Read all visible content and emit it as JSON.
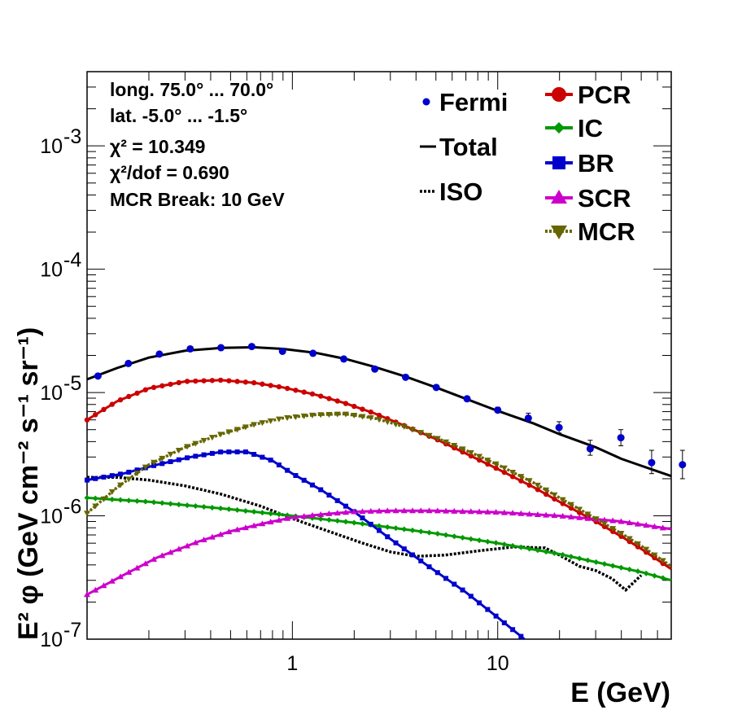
{
  "chart_data": {
    "type": "line",
    "xlabel": "E (GeV)",
    "ylabel": "E² φ (GeV cm⁻² s⁻¹ sr⁻¹)",
    "x_scale": "log",
    "y_scale": "log",
    "xlim": [
      0.1,
      70
    ],
    "ylim": [
      1e-07,
      0.004
    ],
    "x_tick_labels": [
      {
        "value": 1,
        "label": "1"
      },
      {
        "value": 10,
        "label": "10"
      }
    ],
    "y_tick_labels": [
      {
        "value": 1e-07,
        "mant": "10",
        "exp": "-7"
      },
      {
        "value": 1e-06,
        "mant": "10",
        "exp": "-6"
      },
      {
        "value": 1e-05,
        "mant": "10",
        "exp": "-5"
      },
      {
        "value": 0.0001,
        "mant": "10",
        "exp": "-4"
      },
      {
        "value": 0.001,
        "mant": "10",
        "exp": "-3"
      }
    ],
    "annotations": [
      "long. 75.0° ... 70.0°",
      "lat. -5.0° ... -1.5°",
      "χ² = 10.349",
      "χ²/dof = 0.690",
      "MCR Break: 10 GeV"
    ],
    "legend_position": "top-right",
    "series": [
      {
        "name": "Fermi",
        "style": "points",
        "color": "#0000cc",
        "x": [
          0.113,
          0.159,
          0.225,
          0.318,
          0.449,
          0.634,
          0.895,
          1.26,
          1.78,
          2.52,
          3.56,
          5.02,
          7.09,
          10.0,
          14.1,
          19.9,
          28.2,
          39.8,
          56.2,
          79.4
        ],
        "y": [
          1.36e-05,
          1.72e-05,
          2.05e-05,
          2.26e-05,
          2.31e-05,
          2.36e-05,
          2.16e-05,
          2.08e-05,
          1.87e-05,
          1.55e-05,
          1.33e-05,
          1.1e-05,
          8.9e-06,
          7.2e-06,
          6.2e-06,
          5.2e-06,
          3.5e-06,
          4.3e-06,
          2.7e-06,
          2.6e-06
        ],
        "err_low": [
          0,
          0,
          0,
          0,
          0,
          0,
          0,
          0,
          0,
          0,
          0,
          0,
          0,
          3e-07,
          4e-07,
          5e-07,
          4e-07,
          6e-07,
          5e-07,
          6e-07
        ],
        "err_high": [
          0,
          0,
          0,
          0,
          0,
          0,
          0,
          0,
          0,
          0,
          0,
          0,
          0,
          4e-07,
          6e-07,
          6e-07,
          6e-07,
          7e-07,
          7e-07,
          8e-07
        ]
      },
      {
        "name": "Total",
        "style": "line",
        "color": "#000000",
        "x": [
          0.1,
          0.14,
          0.2,
          0.3,
          0.45,
          0.65,
          0.9,
          1.3,
          1.8,
          2.5,
          3.5,
          5,
          7,
          10,
          15,
          20,
          30,
          40,
          50,
          70
        ],
        "y": [
          1.28e-05,
          1.58e-05,
          1.92e-05,
          2.18e-05,
          2.3e-05,
          2.33e-05,
          2.26e-05,
          2.1e-05,
          1.88e-05,
          1.62e-05,
          1.36e-05,
          1.1e-05,
          8.9e-06,
          7.1e-06,
          5.6e-06,
          4.6e-06,
          3.6e-06,
          2.9e-06,
          2.55e-06,
          2.1e-06
        ]
      },
      {
        "name": "ISO",
        "style": "dotted",
        "color": "#000000",
        "x": [
          0.1,
          0.14,
          0.2,
          0.3,
          0.45,
          0.7,
          1.0,
          1.5,
          2.2,
          3.0,
          4.0,
          5.5,
          8,
          12,
          17,
          20,
          25,
          30,
          36,
          42,
          50
        ],
        "y": [
          2.05e-06,
          2.05e-06,
          1.95e-06,
          1.75e-06,
          1.5e-06,
          1.2e-06,
          9.5e-07,
          7.5e-07,
          6e-07,
          5.1e-07,
          4.7e-07,
          4.8e-07,
          5.2e-07,
          5.6e-07,
          5.5e-07,
          4.8e-07,
          3.9e-07,
          3.6e-07,
          3.1e-07,
          2.5e-07,
          3.3e-07
        ]
      },
      {
        "name": "PCR",
        "style": "line+markers",
        "marker": "circle",
        "color": "#cc0000",
        "x": [
          0.1,
          0.14,
          0.2,
          0.3,
          0.45,
          0.65,
          0.9,
          1.3,
          1.8,
          2.5,
          3.5,
          5,
          7,
          10,
          15,
          20,
          30,
          40,
          50,
          70
        ],
        "y": [
          6e-06,
          8.5e-06,
          1.08e-05,
          1.23e-05,
          1.26e-05,
          1.2e-05,
          1.1e-05,
          9.6e-06,
          8.2e-06,
          6.8e-06,
          5.4e-06,
          4.2e-06,
          3.2e-06,
          2.4e-06,
          1.7e-06,
          1.3e-06,
          9e-07,
          6.8e-07,
          5.4e-07,
          3.7e-07
        ]
      },
      {
        "name": "IC",
        "style": "line+markers",
        "marker": "diamond",
        "color": "#009900",
        "x": [
          0.1,
          0.2,
          0.5,
          1,
          2,
          5,
          10,
          20,
          50,
          70
        ],
        "y": [
          1.4e-06,
          1.3e-06,
          1.13e-06,
          1e-06,
          8.8e-07,
          7.2e-07,
          6e-07,
          4.9e-07,
          3.5e-07,
          3e-07
        ]
      },
      {
        "name": "BR",
        "style": "line+markers",
        "marker": "square",
        "color": "#0000cc",
        "x": [
          0.1,
          0.15,
          0.22,
          0.32,
          0.45,
          0.6,
          0.8,
          1.0,
          1.4,
          2.0,
          3.0,
          4.5,
          7,
          10,
          13.5
        ],
        "y": [
          1.95e-06,
          2.2e-06,
          2.6e-06,
          3e-06,
          3.3e-06,
          3.3e-06,
          2.8e-06,
          2.2e-06,
          1.6e-06,
          1.08e-06,
          6.5e-07,
          4e-07,
          2.4e-07,
          1.5e-07,
          1e-07
        ]
      },
      {
        "name": "SCR",
        "style": "line+markers",
        "marker": "triangle-up",
        "color": "#cc00cc",
        "x": [
          0.1,
          0.15,
          0.22,
          0.35,
          0.5,
          0.75,
          1.0,
          1.5,
          2.0,
          3.0,
          5,
          10,
          20,
          40,
          70
        ],
        "y": [
          2.3e-07,
          3.3e-07,
          4.6e-07,
          6.2e-07,
          7.5e-07,
          8.8e-07,
          9.7e-07,
          1.04e-06,
          1.08e-06,
          1.1e-06,
          1.1e-06,
          1.07e-06,
          1e-06,
          9e-07,
          7.8e-07
        ]
      },
      {
        "name": "MCR",
        "style": "dotted+markers",
        "marker": "triangle-down",
        "color": "#666600",
        "x": [
          0.1,
          0.14,
          0.2,
          0.3,
          0.45,
          0.65,
          0.9,
          1.3,
          1.8,
          2.5,
          3.5,
          5,
          7,
          10,
          15,
          20,
          30,
          40,
          50,
          70
        ],
        "y": [
          1.05e-06,
          1.7e-06,
          2.6e-06,
          3.6e-06,
          4.6e-06,
          5.5e-06,
          6.2e-06,
          6.6e-06,
          6.7e-06,
          6.2e-06,
          5.3e-06,
          4.3e-06,
          3.4e-06,
          2.6e-06,
          1.85e-06,
          1.4e-06,
          9.5e-07,
          7.2e-07,
          5.7e-07,
          3.9e-07
        ]
      }
    ]
  }
}
